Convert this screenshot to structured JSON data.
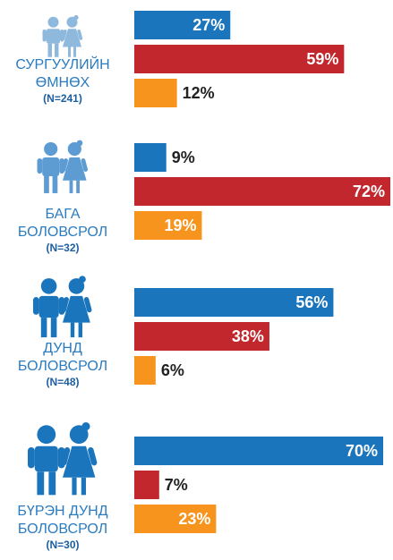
{
  "chart_data": {
    "type": "bar",
    "categories": [
      [
        "СУРГУУЛИЙН",
        "ӨМНӨХ"
      ],
      [
        "БАГА",
        "БОЛОВСРОЛ"
      ],
      [
        "ДУНД",
        "БОЛОВСРОЛ"
      ],
      [
        "БҮРЭН ДУНД",
        "БОЛОВСРОЛ"
      ]
    ],
    "sample_sizes": [
      "(N=241)",
      "(N=32)",
      "(N=48)",
      "(N=30)"
    ],
    "series": [
      {
        "color": "#1a75bc",
        "values": [
          27,
          9,
          56,
          70
        ],
        "value_labels": [
          "27%",
          "9%",
          "56%",
          "70%"
        ]
      },
      {
        "color": "#c1272d",
        "values": [
          59,
          72,
          38,
          7
        ],
        "value_labels": [
          "59%",
          "72%",
          "38%",
          "7%"
        ]
      },
      {
        "color": "#f7941d",
        "values": [
          12,
          19,
          6,
          23
        ],
        "value_labels": [
          "12%",
          "19%",
          "6%",
          "23%"
        ]
      }
    ]
  }
}
